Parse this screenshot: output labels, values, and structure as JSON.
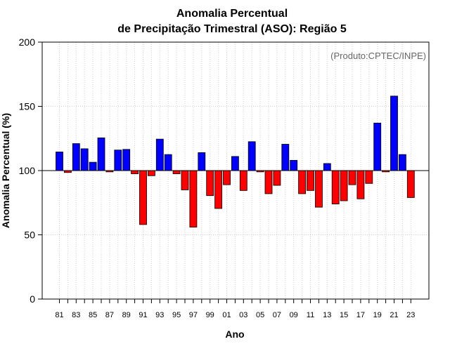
{
  "chart_data": {
    "type": "bar",
    "title_lines": [
      "Anomalia Percentual",
      "de Precipitação Trimestral (ASO): Região 5"
    ],
    "xlabel": "Ano",
    "ylabel": "Anomalia Percentual (%)",
    "annotation": "(Produto:CPTEC/INPE)",
    "ylim": [
      0,
      200
    ],
    "yticks": [
      0,
      50,
      100,
      150,
      200
    ],
    "baseline": 100,
    "grid": true,
    "colors": {
      "above": "#0000ff",
      "below": "#ff0000",
      "edge": "#000000"
    },
    "categories": [
      "81",
      "82",
      "83",
      "84",
      "85",
      "86",
      "87",
      "88",
      "89",
      "90",
      "91",
      "92",
      "93",
      "94",
      "95",
      "96",
      "97",
      "98",
      "99",
      "00",
      "01",
      "02",
      "03",
      "04",
      "05",
      "06",
      "07",
      "08",
      "09",
      "10",
      "11",
      "12",
      "13",
      "14",
      "15",
      "16",
      "17",
      "18",
      "19",
      "20",
      "21",
      "22",
      "23"
    ],
    "xtick_labels": [
      "81",
      "83",
      "85",
      "87",
      "89",
      "91",
      "93",
      "95",
      "97",
      "99",
      "01",
      "03",
      "05",
      "07",
      "09",
      "11",
      "13",
      "15",
      "17",
      "19",
      "21",
      "23"
    ],
    "values": [
      114.5,
      98.5,
      121,
      117,
      106.5,
      125.5,
      99,
      116,
      116.5,
      97.5,
      58,
      96,
      124.5,
      112.5,
      97.5,
      85,
      56,
      114,
      80.5,
      70.5,
      89,
      111,
      84.5,
      122.5,
      99,
      82,
      88.5,
      120.5,
      108,
      82,
      84.5,
      71.5,
      105.5,
      74,
      76.5,
      89,
      78,
      90,
      137,
      99,
      158,
      112.5,
      79
    ]
  }
}
